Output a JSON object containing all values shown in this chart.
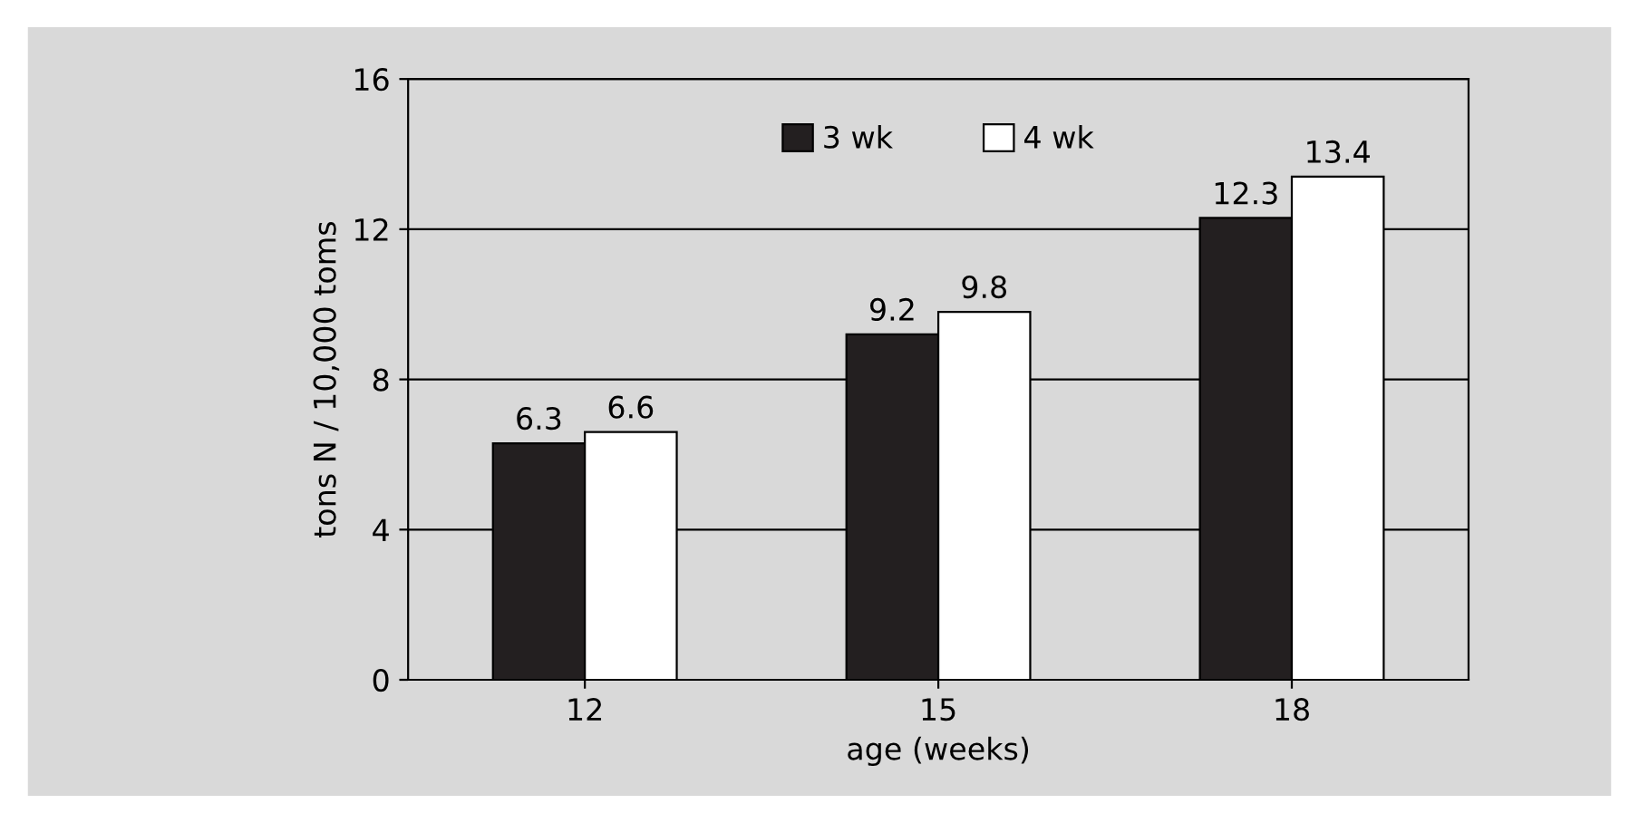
{
  "chart_data": {
    "type": "bar",
    "xlabel": "age (weeks)",
    "ylabel": "tons N / 10,000 toms",
    "categories": [
      "12",
      "15",
      "18"
    ],
    "series": [
      {
        "name": "3 wk",
        "color": "#231f20",
        "values": [
          6.3,
          9.2,
          12.3
        ]
      },
      {
        "name": "4 wk",
        "color": "#ffffff",
        "values": [
          6.6,
          9.8,
          13.4
        ]
      }
    ],
    "ylim": [
      0,
      16
    ],
    "yticks": [
      0,
      4,
      8,
      12,
      16
    ],
    "grid": "y",
    "legend": "top",
    "data_labels": true
  }
}
